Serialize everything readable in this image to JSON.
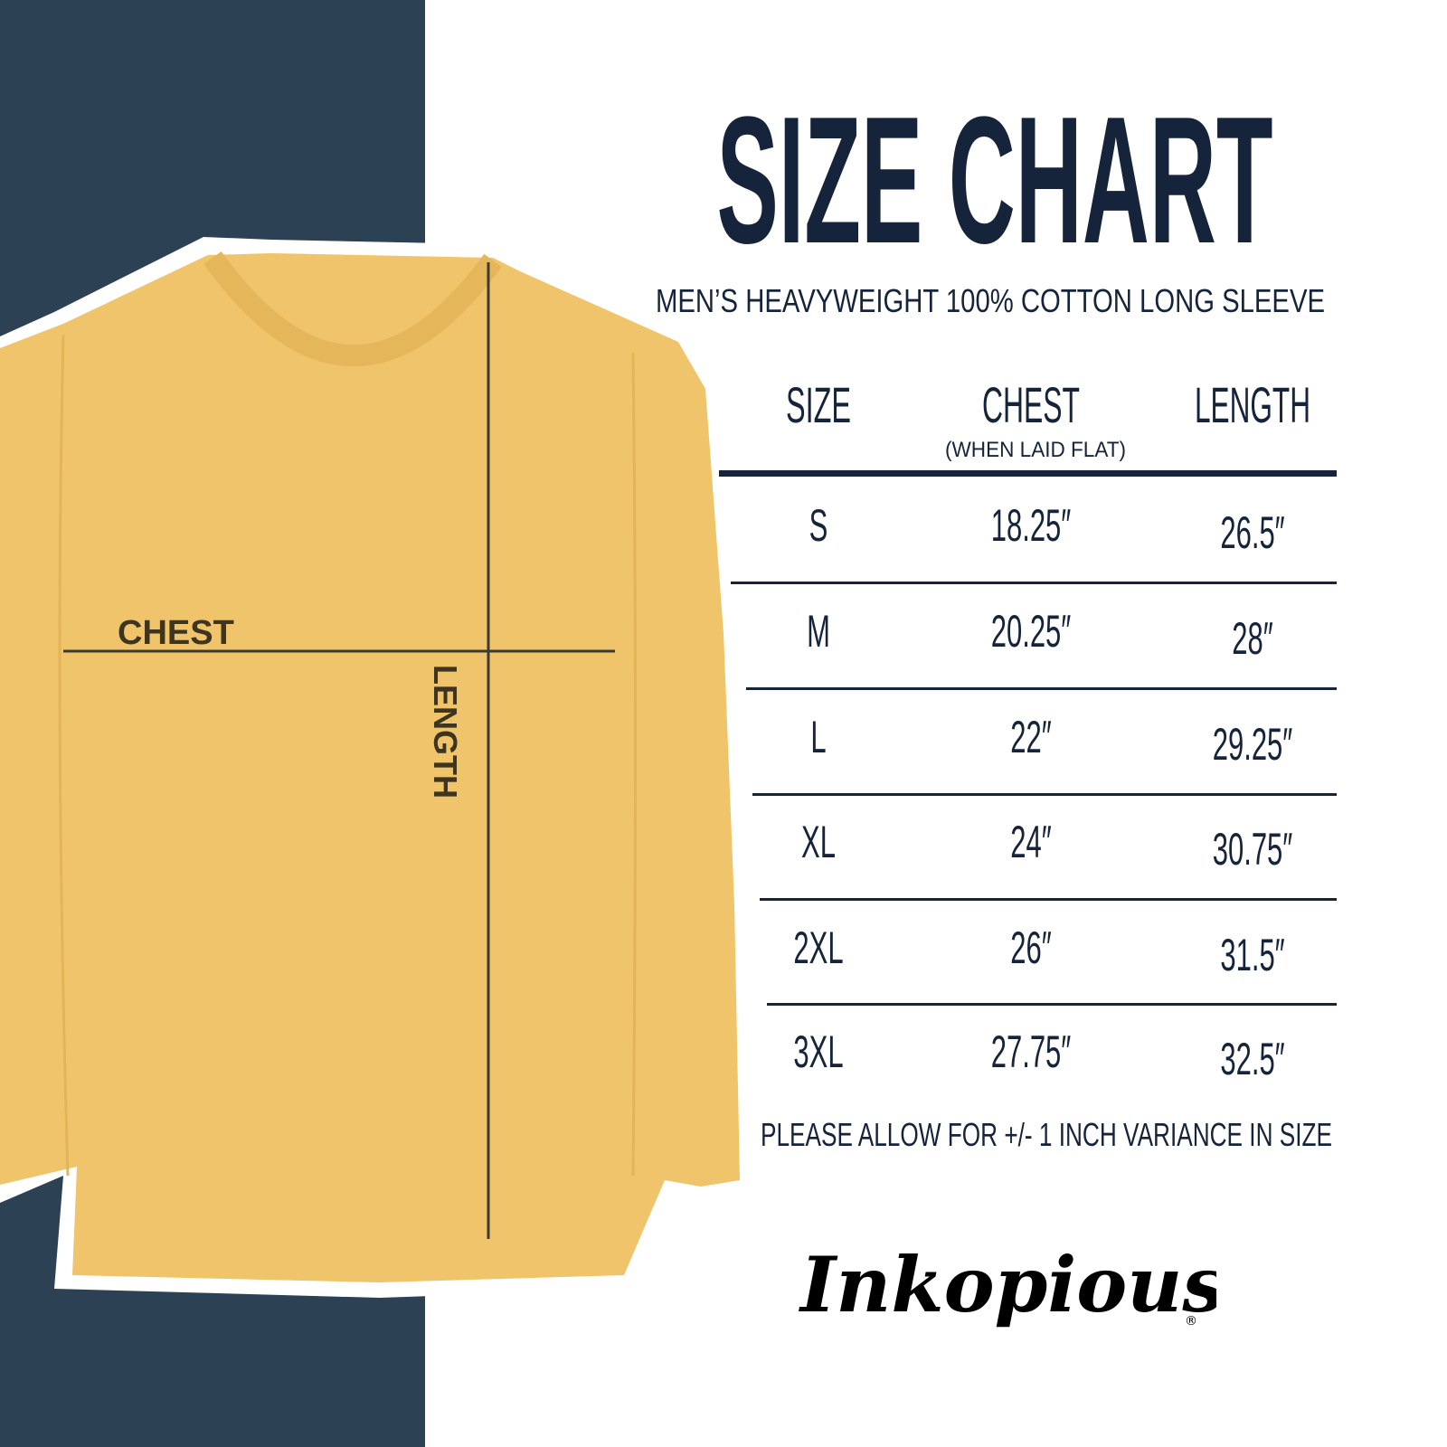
{
  "title": "SIZE CHART",
  "subtitle": "MEN’S HEAVYWEIGHT 100% COTTON LONG SLEEVE",
  "diagram": {
    "chest_label": "CHEST",
    "length_label": "LENGTH",
    "shirt_color": "#f0c46a"
  },
  "table": {
    "headers": {
      "size": "SIZE",
      "chest": "CHEST",
      "chest_note": "(WHEN LAID FLAT)",
      "length": "LENGTH"
    },
    "rows": [
      {
        "size": "S",
        "chest": "18.25″",
        "length": "26.5″"
      },
      {
        "size": "M",
        "chest": "20.25″",
        "length": "28″"
      },
      {
        "size": "L",
        "chest": "22″",
        "length": "29.25″"
      },
      {
        "size": "XL",
        "chest": "24″",
        "length": "30.75″"
      },
      {
        "size": "2XL",
        "chest": "26″",
        "length": "31.5″"
      },
      {
        "size": "3XL",
        "chest": "27.75″",
        "length": "32.5″"
      }
    ]
  },
  "note": "PLEASE ALLOW FOR +/- 1 INCH VARIANCE IN SIZE",
  "brand": "Inkopious",
  "colors": {
    "navy_band": "#2d4155",
    "text": "#15243a",
    "shirt": "#f0c46a"
  }
}
